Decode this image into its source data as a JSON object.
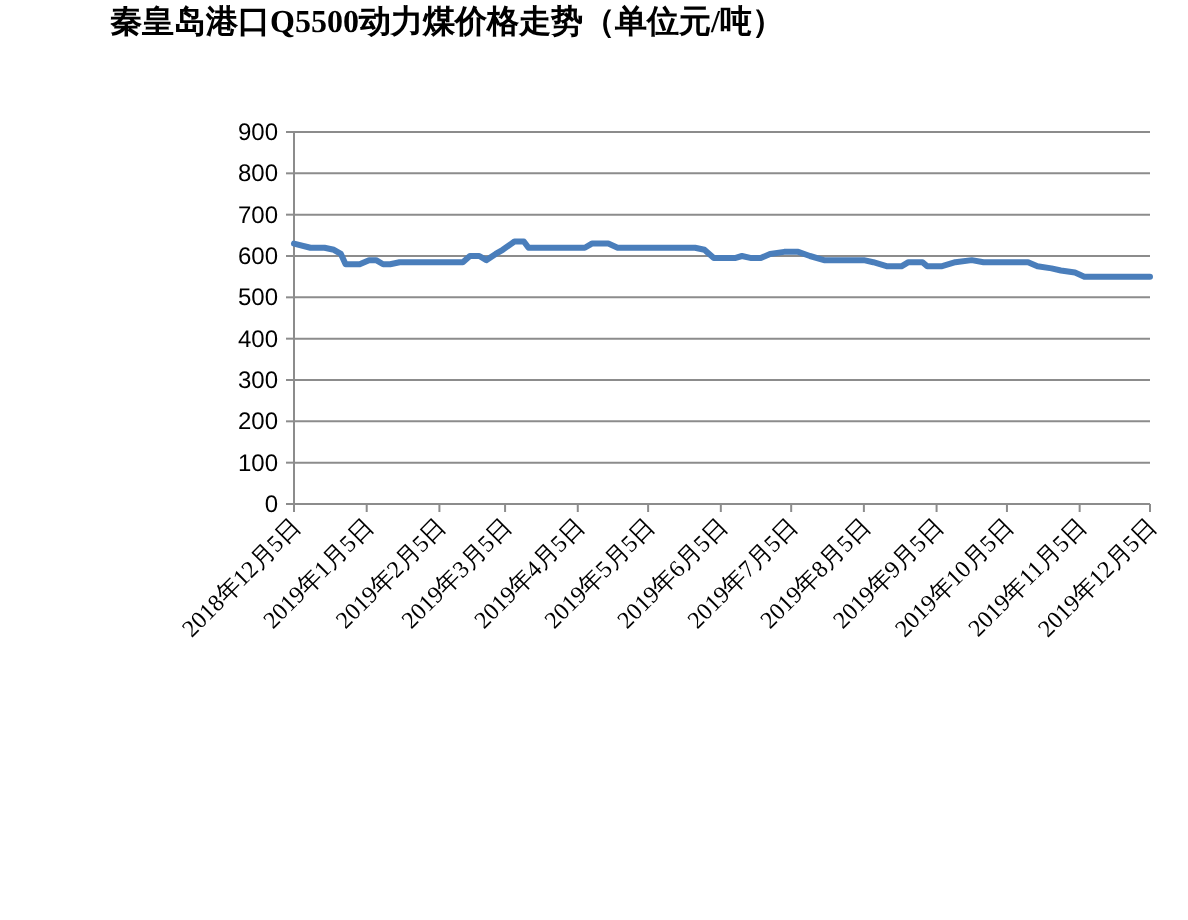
{
  "chart_data": {
    "type": "line",
    "title": "秦皇岛港口Q5500动力煤价格走势（单位元/吨）",
    "x": [
      "2018-12-05",
      "2018-12-12",
      "2018-12-18",
      "2018-12-22",
      "2018-12-25",
      "2018-12-27",
      "2019-01-02",
      "2019-01-06",
      "2019-01-09",
      "2019-01-12",
      "2019-01-15",
      "2019-01-19",
      "2019-02-15",
      "2019-02-18",
      "2019-02-22",
      "2019-02-25",
      "2019-03-01",
      "2019-03-04",
      "2019-03-09",
      "2019-03-13",
      "2019-03-15",
      "2019-03-29",
      "2019-04-08",
      "2019-04-11",
      "2019-04-18",
      "2019-04-22",
      "2019-05-25",
      "2019-05-29",
      "2019-06-02",
      "2019-06-11",
      "2019-06-14",
      "2019-06-18",
      "2019-06-22",
      "2019-06-26",
      "2019-07-02",
      "2019-07-08",
      "2019-07-13",
      "2019-07-19",
      "2019-08-05",
      "2019-08-09",
      "2019-08-15",
      "2019-08-21",
      "2019-08-24",
      "2019-08-30",
      "2019-09-01",
      "2019-09-07",
      "2019-09-13",
      "2019-09-20",
      "2019-09-25",
      "2019-10-14",
      "2019-10-18",
      "2019-10-24",
      "2019-10-28",
      "2019-11-03",
      "2019-11-07",
      "2019-12-05"
    ],
    "series": [
      {
        "color": "#4a7ebb",
        "values": [
          630,
          620,
          620,
          615,
          605,
          580,
          580,
          590,
          590,
          580,
          580,
          585,
          585,
          600,
          600,
          590,
          605,
          615,
          635,
          635,
          620,
          620,
          620,
          630,
          630,
          620,
          620,
          615,
          595,
          595,
          600,
          595,
          595,
          605,
          610,
          610,
          600,
          590,
          590,
          585,
          575,
          575,
          585,
          585,
          575,
          575,
          585,
          590,
          585,
          585,
          575,
          570,
          565,
          560,
          550,
          550
        ]
      }
    ],
    "xlim": [
      "2018-12-05",
      "2019-12-05"
    ],
    "xticks": [
      {
        "value": "2018-12-05",
        "label": "2018年12月5日"
      },
      {
        "value": "2019-01-05",
        "label": "2019年1月5日"
      },
      {
        "value": "2019-02-05",
        "label": "2019年2月5日"
      },
      {
        "value": "2019-03-05",
        "label": "2019年3月5日"
      },
      {
        "value": "2019-04-05",
        "label": "2019年4月5日"
      },
      {
        "value": "2019-05-05",
        "label": "2019年5月5日"
      },
      {
        "value": "2019-06-05",
        "label": "2019年6月5日"
      },
      {
        "value": "2019-07-05",
        "label": "2019年7月5日"
      },
      {
        "value": "2019-08-05",
        "label": "2019年8月5日"
      },
      {
        "value": "2019-09-05",
        "label": "2019年9月5日"
      },
      {
        "value": "2019-10-05",
        "label": "2019年10月5日"
      },
      {
        "value": "2019-11-05",
        "label": "2019年11月5日"
      },
      {
        "value": "2019-12-05",
        "label": "2019年12月5日"
      }
    ],
    "ylim": [
      0,
      900
    ],
    "yticks": [
      0,
      100,
      200,
      300,
      400,
      500,
      600,
      700,
      800,
      900
    ],
    "grid": "y"
  }
}
